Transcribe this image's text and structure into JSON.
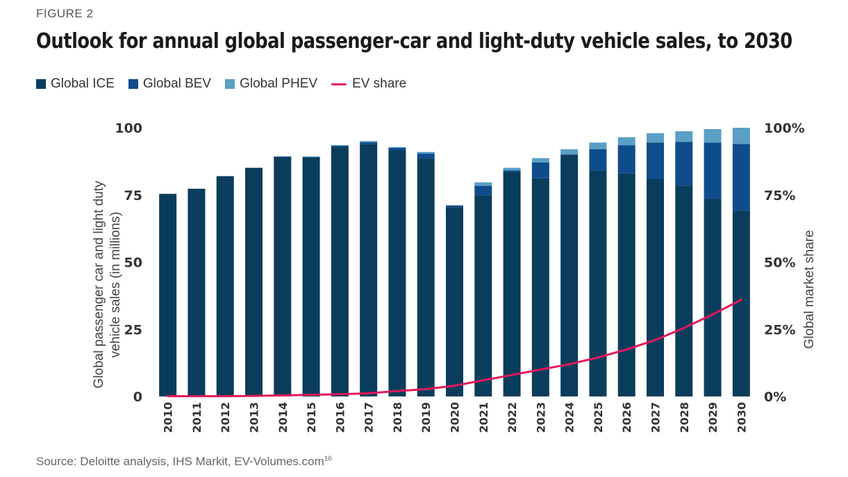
{
  "figure_label": "FIGURE 2",
  "title": "Outlook for annual global passenger-car and light-duty vehicle sales, to 2030",
  "legend": [
    {
      "label": "Global ICE",
      "color": "#0a3d5c"
    },
    {
      "label": "Global BEV",
      "color": "#0e4c8c"
    },
    {
      "label": "Global PHEV",
      "color": "#5a9fc5"
    },
    {
      "label": "EV share",
      "color": "#e2185b"
    }
  ],
  "source": {
    "text": "Source: Deloitte analysis, IHS Markit, EV-Volumes.com",
    "note": "16"
  },
  "chart_data": {
    "type": "bar",
    "stacked": true,
    "title": "Outlook for annual global passenger-car and light-duty vehicle sales, to 2030",
    "categories": [
      "2010",
      "2011",
      "2012",
      "2013",
      "2014",
      "2015",
      "2016",
      "2017",
      "2018",
      "2019",
      "2020",
      "2021",
      "2022",
      "2023",
      "2024",
      "2025",
      "2026",
      "2027",
      "2028",
      "2029",
      "2030"
    ],
    "series": [
      {
        "name": "Global ICE",
        "color": "#0a3d5c",
        "values": [
          75.4,
          77.3,
          82.0,
          85.1,
          89.2,
          89.0,
          93.0,
          94.0,
          91.6,
          88.6,
          70.5,
          74.9,
          83.7,
          81.2,
          89.9,
          84.0,
          83.0,
          81.0,
          78.5,
          73.5,
          69.0
        ]
      },
      {
        "name": "Global BEV",
        "color": "#0e4c8c",
        "values": [
          0,
          0,
          0,
          0,
          0.1,
          0.2,
          0.4,
          0.6,
          0.9,
          1.8,
          0.6,
          3.5,
          0.4,
          5.9,
          0.2,
          8.0,
          10.5,
          13.5,
          16.2,
          21.0,
          25.0
        ]
      },
      {
        "name": "Global PHEV",
        "color": "#5a9fc5",
        "values": [
          0,
          0,
          0,
          0,
          0,
          0.1,
          0.1,
          0.5,
          0.3,
          0.6,
          0,
          1.3,
          1.0,
          1.6,
          1.9,
          2.5,
          3.0,
          3.5,
          4.0,
          5.0,
          6.0
        ]
      }
    ],
    "line_series": {
      "name": "EV share",
      "color": "#e2185b",
      "axis": "right",
      "values": [
        0.1,
        0.1,
        0.1,
        0.2,
        0.4,
        0.6,
        0.8,
        1.2,
        2.0,
        2.7,
        4.0,
        6.0,
        8.0,
        10.0,
        12.0,
        14.5,
        17.5,
        21.0,
        25.5,
        30.5,
        36.0
      ]
    },
    "ylabel": "Global passenger car and light duty vehicle sales (in millions)",
    "ylabel_right": "Global market share",
    "ylim": [
      0,
      100
    ],
    "ylim_right": [
      0,
      100
    ],
    "yticks": [
      "0",
      "25",
      "50",
      "75",
      "100"
    ],
    "yticks_right": [
      "0%",
      "25%",
      "50%",
      "75%",
      "100%"
    ]
  }
}
